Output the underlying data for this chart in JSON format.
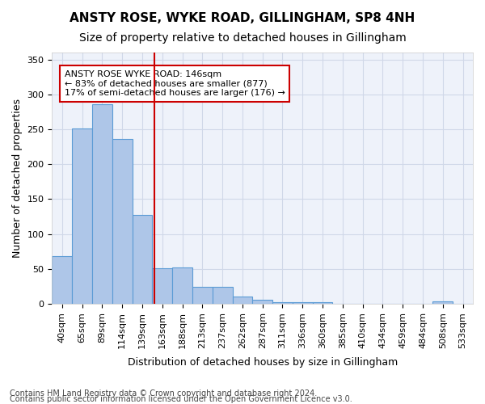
{
  "title1": "ANSTY ROSE, WYKE ROAD, GILLINGHAM, SP8 4NH",
  "title2": "Size of property relative to detached houses in Gillingham",
  "xlabel": "Distribution of detached houses by size in Gillingham",
  "ylabel": "Number of detached properties",
  "bins": [
    "40sqm",
    "65sqm",
    "89sqm",
    "114sqm",
    "139sqm",
    "163sqm",
    "188sqm",
    "213sqm",
    "237sqm",
    "262sqm",
    "287sqm",
    "311sqm",
    "336sqm",
    "360sqm",
    "385sqm",
    "410sqm",
    "434sqm",
    "459sqm",
    "484sqm",
    "508sqm",
    "533sqm"
  ],
  "values": [
    68,
    251,
    286,
    236,
    127,
    51,
    52,
    24,
    24,
    10,
    6,
    2,
    2,
    2,
    0,
    0,
    0,
    0,
    0,
    3,
    0
  ],
  "bar_color": "#aec6e8",
  "bar_edge_color": "#5b9bd5",
  "red_line_x": 4.6,
  "annotation_text": "ANSTY ROSE WYKE ROAD: 146sqm\n← 83% of detached houses are smaller (877)\n17% of semi-detached houses are larger (176) →",
  "annotation_box_color": "#ffffff",
  "annotation_edge_color": "#cc0000",
  "red_line_color": "#cc0000",
  "ylim": [
    0,
    360
  ],
  "yticks": [
    0,
    50,
    100,
    150,
    200,
    250,
    300,
    350
  ],
  "grid_color": "#d0d8e8",
  "background_color": "#eef2fa",
  "footer1": "Contains HM Land Registry data © Crown copyright and database right 2024.",
  "footer2": "Contains public sector information licensed under the Open Government Licence v3.0.",
  "title1_fontsize": 11,
  "title2_fontsize": 10,
  "xlabel_fontsize": 9,
  "ylabel_fontsize": 9,
  "tick_fontsize": 8,
  "annotation_fontsize": 8,
  "footer_fontsize": 7
}
